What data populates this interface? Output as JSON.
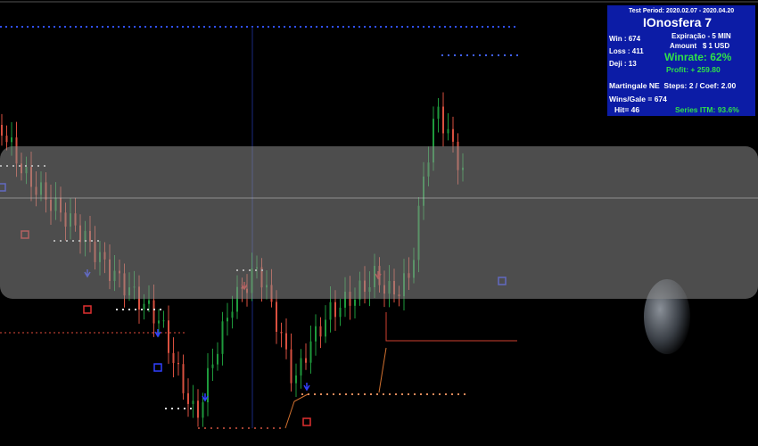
{
  "panel": {
    "test_period": "Test Period: 2020.02.07 - 2020.04.20",
    "title": "IOnosfera 7",
    "win": "Win : 674",
    "loss": "Loss : 411",
    "doji": "Deji : 13",
    "expiration": "Expiração - 5 MIN",
    "amount": "Amount   $ 1 USD",
    "winrate": "Winrate: 62%",
    "profit": "Profit: + 259.80",
    "martingale": "Martingale NE  Steps: 2 / Coef: 2.00",
    "wins_gale": "Wins/Gale = 674",
    "hit": "Hit= 46",
    "series_itm": "Series ITM: 93.6%"
  }
}
